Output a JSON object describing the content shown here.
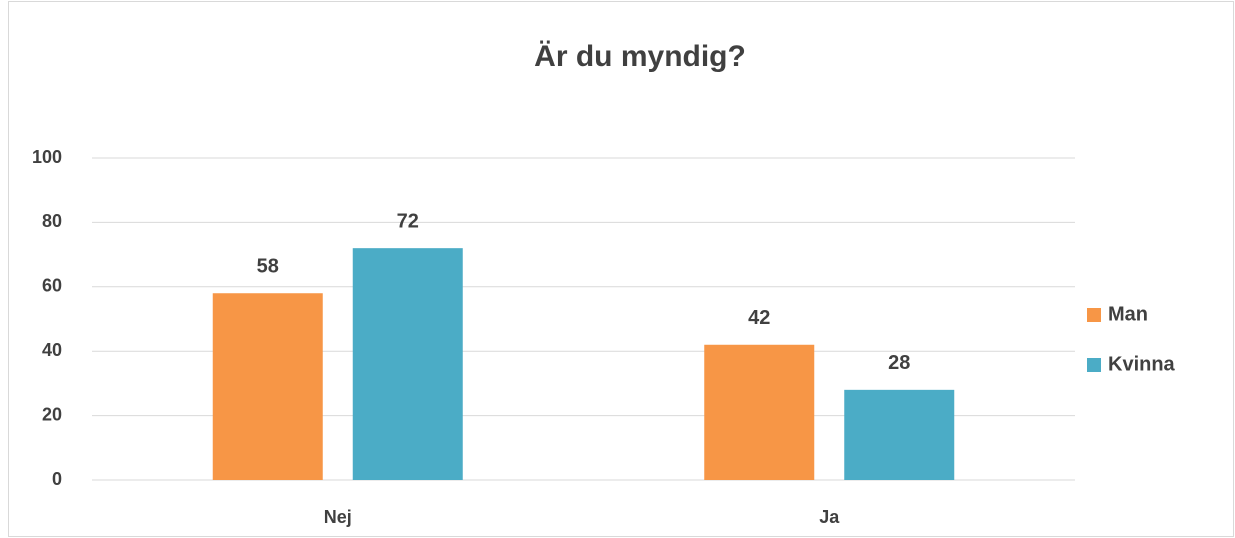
{
  "chart_data": {
    "type": "bar",
    "title": "Är du myndig?",
    "categories": [
      "Nej",
      "Ja"
    ],
    "series": [
      {
        "name": "Man",
        "color": "#f79646",
        "values": [
          58,
          42
        ]
      },
      {
        "name": "Kvinna",
        "color": "#4bacc6",
        "values": [
          72,
          28
        ]
      }
    ],
    "ylim": [
      0,
      100
    ],
    "yticks": [
      0,
      20,
      40,
      60,
      80,
      100
    ],
    "grid": true,
    "legend": "right"
  }
}
